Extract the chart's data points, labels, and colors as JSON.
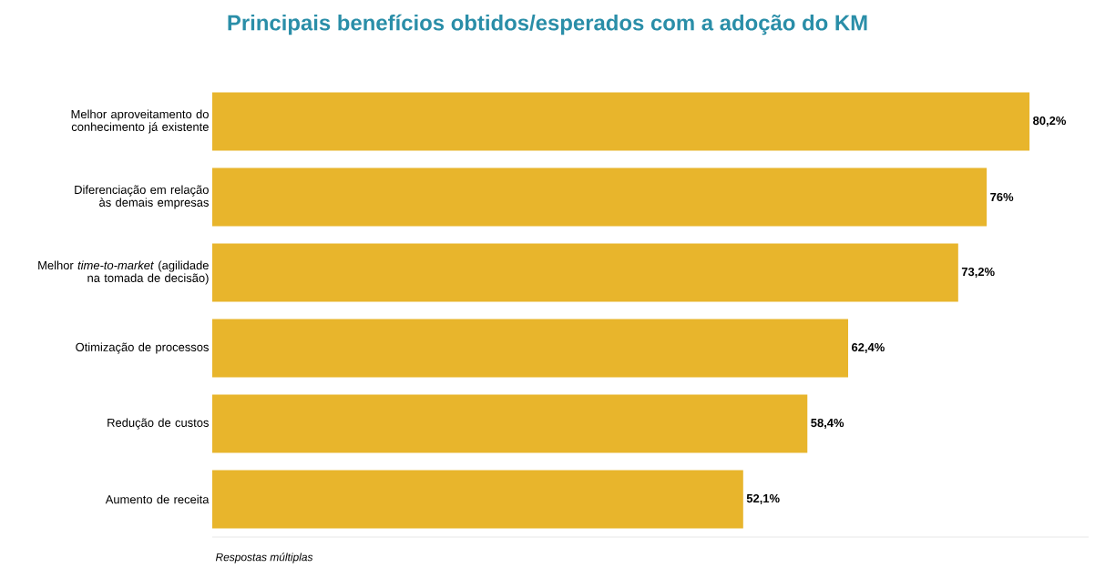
{
  "chart_data": {
    "type": "bar",
    "orientation": "horizontal",
    "title": "Principais benefícios obtidos/esperados com a adoção do KM",
    "categories": [
      "Melhor aproveitamento do conhecimento já existente",
      "Diferenciação em relação às demais empresas",
      "Melhor *time-to-market* (agilidade na tomada de decisão)",
      "Otimização de processos",
      "Redução de custos",
      "Aumento de receita"
    ],
    "values": [
      80.2,
      76,
      73.2,
      62.4,
      58.4,
      52.1
    ],
    "value_labels": [
      "80,2%",
      "76%",
      "73,2%",
      "62,4%",
      "58,4%",
      "52,1%"
    ],
    "color": "#e8b52c",
    "xlim": [
      0,
      86
    ],
    "tick_labels": "y",
    "annotations": [
      "Respostas múltiplas"
    ]
  }
}
